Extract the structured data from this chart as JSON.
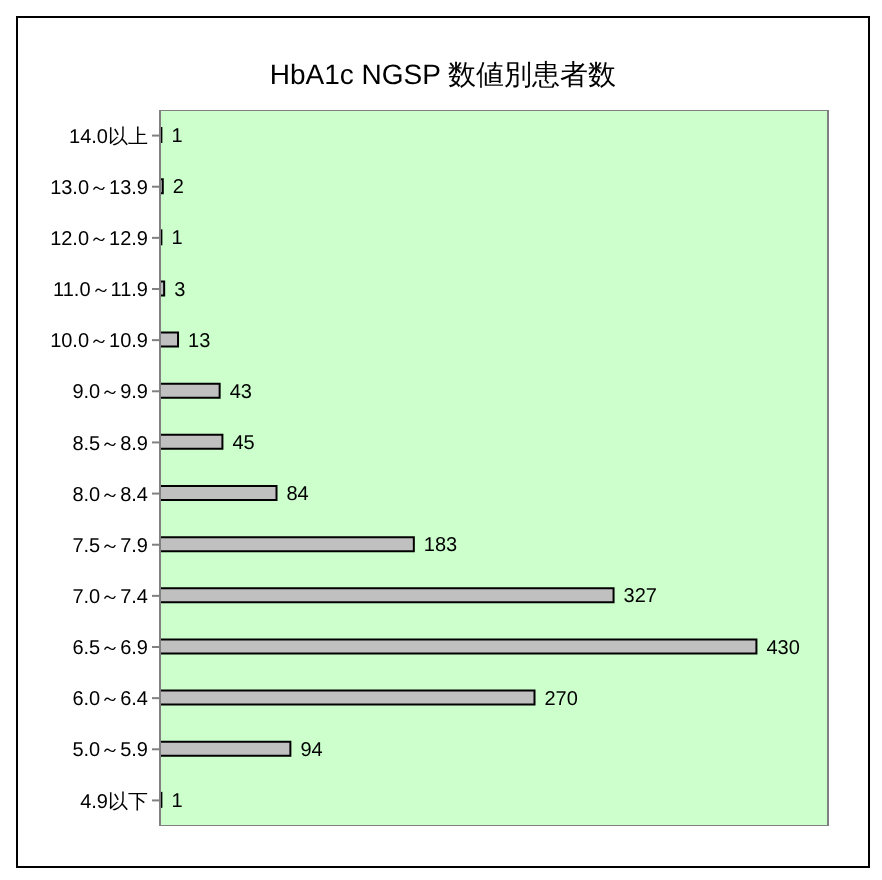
{
  "chart_data": {
    "type": "bar",
    "orientation": "horizontal",
    "title": "HbA1c NGSP 数値別患者数",
    "categories": [
      "14.0以上",
      "13.0～13.9",
      "12.0～12.9",
      "11.0～11.9",
      "10.0～10.9",
      "9.0～9.9",
      "8.5～8.9",
      "8.0～8.4",
      "7.5～7.9",
      "7.0～7.4",
      "6.5～6.9",
      "6.0～6.4",
      "5.0～5.9",
      "4.9以下"
    ],
    "values": [
      1,
      2,
      1,
      3,
      13,
      43,
      45,
      84,
      183,
      327,
      430,
      270,
      94,
      1
    ],
    "color": "#c0c0c0",
    "data_labels": true
  }
}
